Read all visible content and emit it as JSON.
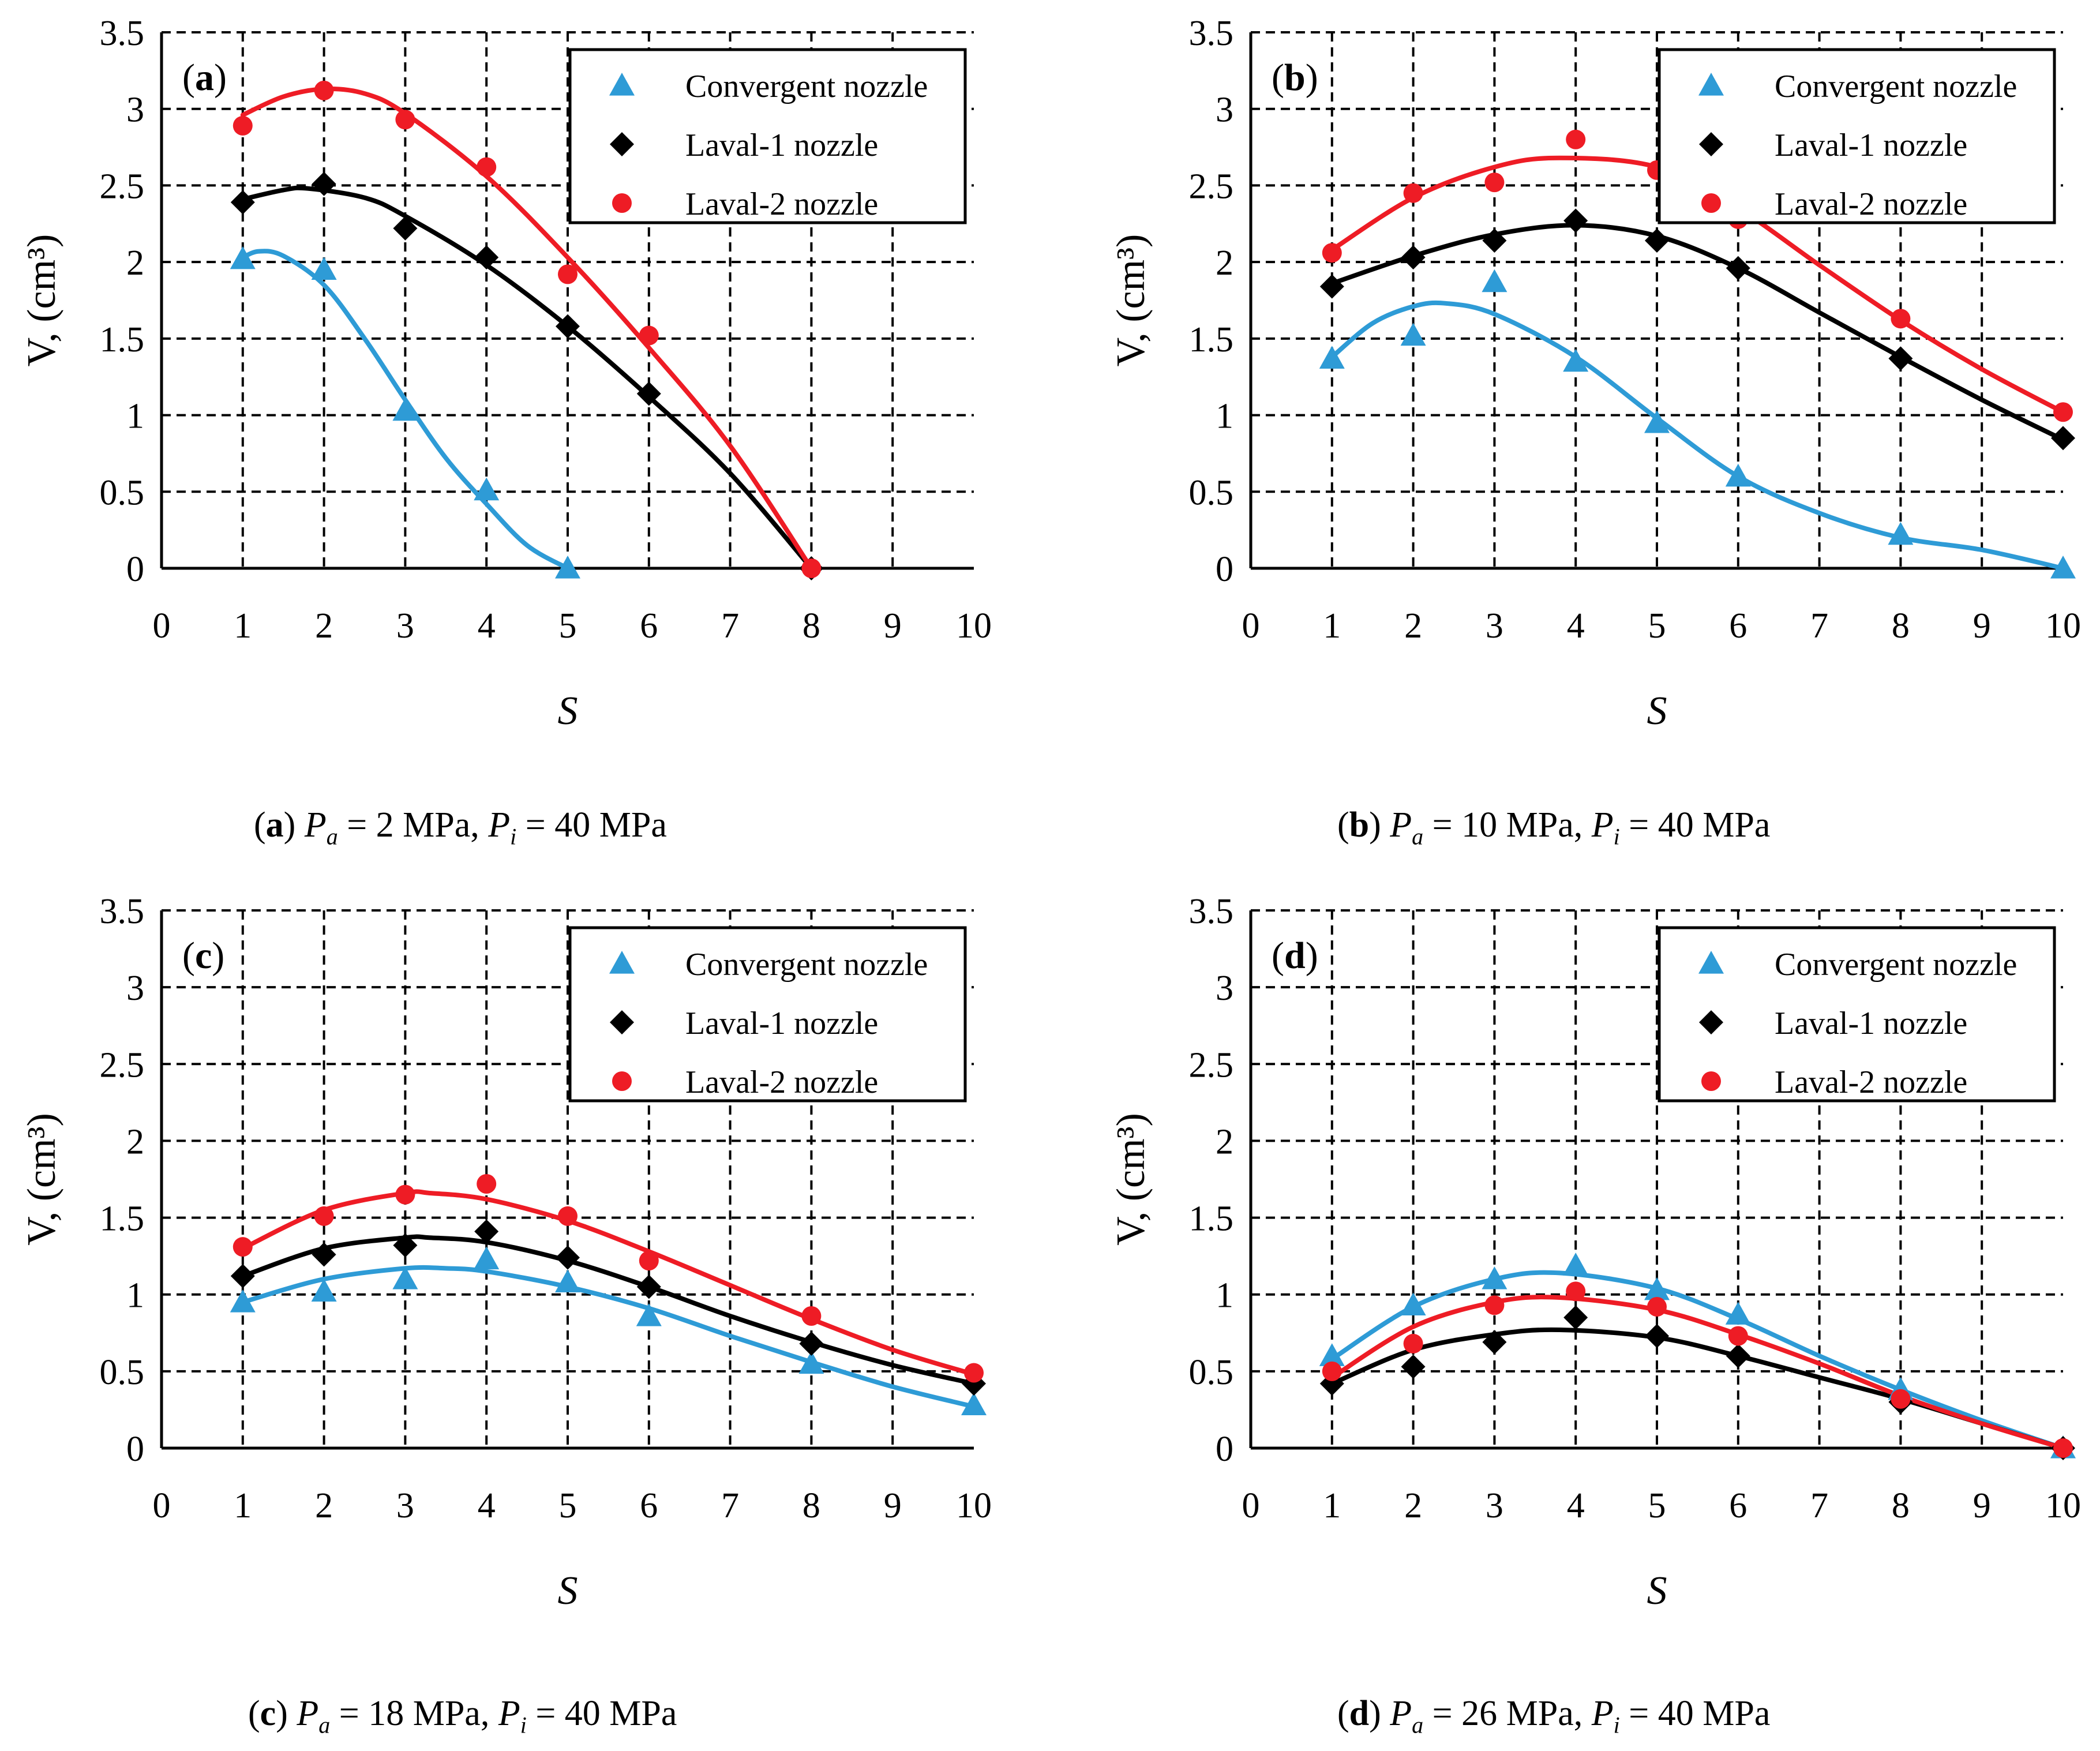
{
  "figure": {
    "colors": {
      "convergent": "#2E9BD6",
      "laval1": "#000000",
      "laval2": "#EE1C25",
      "grid": "#000000",
      "background": "#FFFFFF"
    }
  },
  "chart_data": [
    {
      "type": "scatter",
      "panel_label": "a",
      "xlabel": "S",
      "ylabel": "V, (cm³)",
      "xlim": [
        0,
        10
      ],
      "ylim": [
        0,
        3.5
      ],
      "x_ticks": [
        "0",
        "1",
        "2",
        "3",
        "4",
        "5",
        "6",
        "7",
        "8",
        "9",
        "10"
      ],
      "y_ticks": [
        "0",
        "0.5",
        "1",
        "1.5",
        "2",
        "2.5",
        "3",
        "3.5"
      ],
      "legend": {
        "position": "top-right",
        "entries": [
          "Convergent nozzle",
          "Laval-1 nozzle",
          "Laval-2 nozzle"
        ]
      },
      "caption": {
        "label": "a",
        "pa_value": "2 MPa",
        "pi_value": "40 MPa"
      },
      "series": [
        {
          "name": "Convergent nozzle",
          "marker": "triangle",
          "x": [
            1,
            2,
            3,
            4,
            5
          ],
          "values": [
            2.02,
            1.95,
            1.03,
            0.51,
            0.0
          ],
          "fit_x": [
            1,
            1.2,
            1.5,
            2,
            2.5,
            3,
            3.5,
            4,
            4.5,
            5
          ],
          "fit_values": [
            2.03,
            2.07,
            2.04,
            1.85,
            1.5,
            1.1,
            0.72,
            0.42,
            0.15,
            0.0
          ]
        },
        {
          "name": "Laval-1 nozzle",
          "marker": "diamond",
          "x": [
            1,
            2,
            3,
            4,
            5,
            6,
            8
          ],
          "values": [
            2.39,
            2.51,
            2.22,
            2.03,
            1.58,
            1.14,
            0.0
          ],
          "fit_x": [
            1,
            1.5,
            1.8,
            2.5,
            3,
            4,
            5,
            6,
            7,
            8
          ],
          "fit_values": [
            2.41,
            2.47,
            2.48,
            2.42,
            2.3,
            1.98,
            1.58,
            1.12,
            0.62,
            0.0
          ]
        },
        {
          "name": "Laval-2 nozzle",
          "marker": "circle",
          "x": [
            1,
            2,
            3,
            4,
            5,
            6,
            8
          ],
          "values": [
            2.89,
            3.12,
            2.93,
            2.62,
            1.92,
            1.52,
            0.0
          ],
          "fit_x": [
            1,
            1.5,
            2,
            2.5,
            3,
            4,
            5,
            6,
            7,
            8
          ],
          "fit_values": [
            2.96,
            3.08,
            3.13,
            3.1,
            2.97,
            2.56,
            2.03,
            1.44,
            0.8,
            0.0
          ]
        }
      ]
    },
    {
      "type": "scatter",
      "panel_label": "b",
      "xlabel": "S",
      "ylabel": "V, (cm³)",
      "xlim": [
        0,
        10
      ],
      "ylim": [
        0,
        3.5
      ],
      "x_ticks": [
        "0",
        "1",
        "2",
        "3",
        "4",
        "5",
        "6",
        "7",
        "8",
        "9",
        "10"
      ],
      "y_ticks": [
        "0",
        "0.5",
        "1",
        "1.5",
        "2",
        "2.5",
        "3",
        "3.5"
      ],
      "legend": {
        "position": "top-right",
        "entries": [
          "Convergent nozzle",
          "Laval-1 nozzle",
          "Laval-2 nozzle"
        ]
      },
      "caption": {
        "label": "b",
        "pa_value": "10 MPa",
        "pi_value": "40 MPa"
      },
      "series": [
        {
          "name": "Convergent nozzle",
          "marker": "triangle",
          "x": [
            1,
            2,
            3,
            4,
            5,
            6,
            8,
            10
          ],
          "values": [
            1.37,
            1.52,
            1.87,
            1.35,
            0.95,
            0.6,
            0.22,
            0.0
          ],
          "fit_x": [
            1,
            1.5,
            2,
            2.4,
            3,
            4,
            5,
            6,
            7,
            8,
            9,
            10
          ],
          "fit_values": [
            1.38,
            1.6,
            1.71,
            1.73,
            1.66,
            1.38,
            0.98,
            0.6,
            0.36,
            0.2,
            0.12,
            0.0
          ]
        },
        {
          "name": "Laval-1 nozzle",
          "marker": "diamond",
          "x": [
            1,
            2,
            3,
            4,
            5,
            6,
            8,
            10
          ],
          "values": [
            1.84,
            2.03,
            2.14,
            2.27,
            2.14,
            1.96,
            1.37,
            0.85
          ],
          "fit_x": [
            1,
            2,
            3,
            4,
            5,
            6,
            7,
            8,
            9,
            10
          ],
          "fit_values": [
            1.86,
            2.04,
            2.18,
            2.24,
            2.17,
            1.96,
            1.67,
            1.38,
            1.1,
            0.84
          ]
        },
        {
          "name": "Laval-2 nozzle",
          "marker": "circle",
          "x": [
            1,
            2,
            3,
            4,
            5,
            6,
            8,
            10
          ],
          "values": [
            2.06,
            2.45,
            2.52,
            2.8,
            2.6,
            2.28,
            1.63,
            1.02
          ],
          "fit_x": [
            1,
            2,
            3,
            3.8,
            5,
            6,
            7,
            8,
            9,
            10
          ],
          "fit_values": [
            2.08,
            2.42,
            2.62,
            2.68,
            2.62,
            2.35,
            1.98,
            1.62,
            1.3,
            1.02
          ]
        }
      ]
    },
    {
      "type": "scatter",
      "panel_label": "c",
      "xlabel": "S",
      "ylabel": "V, (cm³)",
      "xlim": [
        0,
        10
      ],
      "ylim": [
        0,
        3.5
      ],
      "x_ticks": [
        "0",
        "1",
        "2",
        "3",
        "4",
        "5",
        "6",
        "7",
        "8",
        "9",
        "10"
      ],
      "y_ticks": [
        "0",
        "0.5",
        "1",
        "1.5",
        "2",
        "2.5",
        "3",
        "3.5"
      ],
      "legend": {
        "position": "top-right",
        "entries": [
          "Convergent nozzle",
          "Laval-1 nozzle",
          "Laval-2 nozzle"
        ]
      },
      "caption": {
        "label": "c",
        "pa_value": "18 MPa",
        "pi_value": "40 MPa"
      },
      "series": [
        {
          "name": "Convergent nozzle",
          "marker": "triangle",
          "x": [
            1,
            2,
            3,
            4,
            5,
            6,
            8,
            10
          ],
          "values": [
            0.95,
            1.02,
            1.1,
            1.23,
            1.08,
            0.86,
            0.55,
            0.28
          ],
          "fit_x": [
            1,
            2,
            3,
            3.5,
            4,
            5,
            6,
            7,
            8,
            9,
            10
          ],
          "fit_values": [
            0.95,
            1.1,
            1.17,
            1.17,
            1.15,
            1.05,
            0.91,
            0.73,
            0.56,
            0.4,
            0.27
          ]
        },
        {
          "name": "Laval-1 nozzle",
          "marker": "diamond",
          "x": [
            1,
            2,
            3,
            4,
            5,
            6,
            8,
            10
          ],
          "values": [
            1.12,
            1.26,
            1.32,
            1.41,
            1.24,
            1.05,
            0.68,
            0.42
          ],
          "fit_x": [
            1,
            2,
            3,
            3.3,
            4,
            5,
            6,
            7,
            8,
            9,
            10
          ],
          "fit_values": [
            1.12,
            1.3,
            1.37,
            1.37,
            1.34,
            1.22,
            1.05,
            0.86,
            0.69,
            0.54,
            0.42
          ]
        },
        {
          "name": "Laval-2 nozzle",
          "marker": "circle",
          "x": [
            1,
            2,
            3,
            4,
            5,
            6,
            8,
            10
          ],
          "values": [
            1.31,
            1.51,
            1.65,
            1.72,
            1.51,
            1.22,
            0.86,
            0.49
          ],
          "fit_x": [
            1,
            2,
            3,
            3.3,
            4,
            5,
            6,
            7,
            8,
            9,
            10
          ],
          "fit_values": [
            1.3,
            1.55,
            1.66,
            1.66,
            1.62,
            1.48,
            1.28,
            1.06,
            0.84,
            0.64,
            0.48
          ]
        }
      ]
    },
    {
      "type": "scatter",
      "panel_label": "d",
      "xlabel": "S",
      "ylabel": "V, (cm³)",
      "xlim": [
        0,
        10
      ],
      "ylim": [
        0,
        3.5
      ],
      "x_ticks": [
        "0",
        "1",
        "2",
        "3",
        "4",
        "5",
        "6",
        "7",
        "8",
        "9",
        "10"
      ],
      "y_ticks": [
        "0",
        "0.5",
        "1",
        "1.5",
        "2",
        "2.5",
        "3",
        "3.5"
      ],
      "legend": {
        "position": "top-right",
        "entries": [
          "Convergent nozzle",
          "Laval-1 nozzle",
          "Laval-2 nozzle"
        ]
      },
      "caption": {
        "label": "d",
        "pa_value": "26 MPa",
        "pi_value": "40 MPa"
      },
      "series": [
        {
          "name": "Convergent nozzle",
          "marker": "triangle",
          "x": [
            1,
            2,
            3,
            4,
            5,
            6,
            8,
            10
          ],
          "values": [
            0.6,
            0.93,
            1.1,
            1.19,
            1.03,
            0.87,
            0.38,
            0.0
          ],
          "fit_x": [
            1,
            2,
            3,
            3.8,
            5,
            6,
            7,
            8,
            9,
            10
          ],
          "fit_values": [
            0.58,
            0.92,
            1.1,
            1.14,
            1.04,
            0.84,
            0.6,
            0.38,
            0.18,
            0.0
          ]
        },
        {
          "name": "Laval-1 nozzle",
          "marker": "diamond",
          "x": [
            1,
            2,
            3,
            4,
            5,
            6,
            8,
            10
          ],
          "values": [
            0.42,
            0.53,
            0.69,
            0.85,
            0.73,
            0.6,
            0.3,
            0.0
          ],
          "fit_x": [
            1,
            2,
            3,
            3.8,
            5,
            6,
            7,
            8,
            9,
            10
          ],
          "fit_values": [
            0.42,
            0.64,
            0.74,
            0.77,
            0.72,
            0.6,
            0.46,
            0.32,
            0.16,
            0.0
          ]
        },
        {
          "name": "Laval-2 nozzle",
          "marker": "circle",
          "x": [
            1,
            2,
            3,
            4,
            5,
            6,
            8,
            10
          ],
          "values": [
            0.5,
            0.68,
            0.93,
            1.02,
            0.92,
            0.73,
            0.32,
            0.0
          ],
          "fit_x": [
            1,
            2,
            3,
            3.8,
            5,
            6,
            7,
            8,
            9,
            10
          ],
          "fit_values": [
            0.46,
            0.79,
            0.95,
            0.98,
            0.9,
            0.74,
            0.55,
            0.34,
            0.16,
            0.0
          ]
        }
      ]
    }
  ]
}
